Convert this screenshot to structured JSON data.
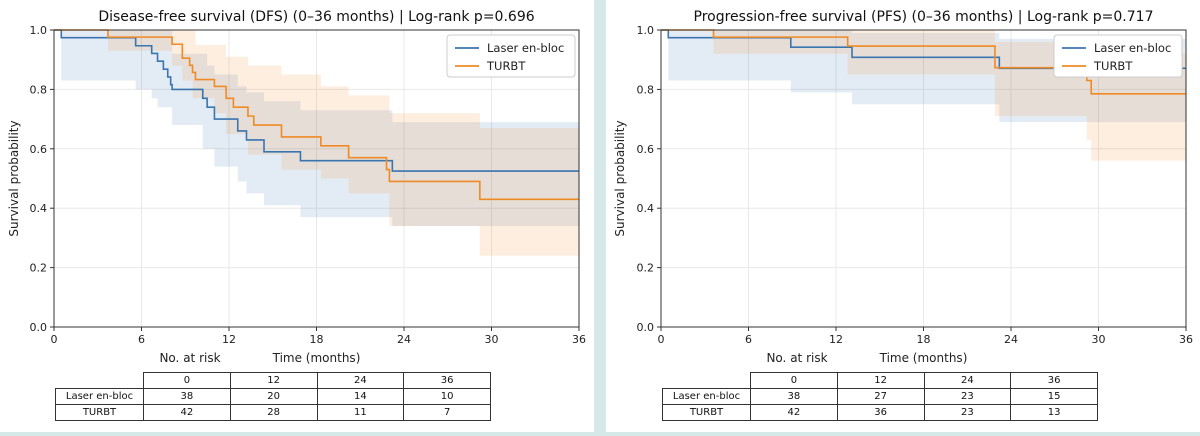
{
  "colors": {
    "laser": "#3a75b0",
    "turbt": "#f08a24"
  },
  "chart_data": [
    {
      "id": "dfs",
      "type": "line",
      "title": "Disease-free survival (DFS) (0–36 months)  |  Log-rank p=0.696",
      "xlabel": "Time (months)",
      "ylabel": "Survival probability",
      "xlim": [
        0,
        36
      ],
      "ylim": [
        0,
        1.0
      ],
      "xticks": [
        "0",
        "6",
        "12",
        "18",
        "24",
        "30",
        "36"
      ],
      "yticks": [
        "0.0",
        "0.2",
        "0.4",
        "0.6",
        "0.8",
        "1.0"
      ],
      "grid": true,
      "legend": "top-right",
      "series": [
        {
          "name": "Laser en-bloc",
          "color": "#3a75b0",
          "steps": [
            [
              0,
              1.0
            ],
            [
              0.5,
              0.974
            ],
            [
              5.6,
              0.947
            ],
            [
              6.7,
              0.921
            ],
            [
              7.1,
              0.895
            ],
            [
              7.5,
              0.868
            ],
            [
              7.8,
              0.842
            ],
            [
              8.0,
              0.816
            ],
            [
              8.1,
              0.8
            ],
            [
              10.2,
              0.77
            ],
            [
              10.5,
              0.74
            ],
            [
              11.0,
              0.7
            ],
            [
              12.6,
              0.66
            ],
            [
              13.2,
              0.63
            ],
            [
              14.4,
              0.59
            ],
            [
              16.9,
              0.56
            ],
            [
              22.7,
              0.56
            ],
            [
              23.2,
              0.525
            ],
            [
              36,
              0.525
            ]
          ],
          "ci_upper": [
            [
              0,
              1.0
            ],
            [
              0.5,
              1.0
            ],
            [
              5.6,
              1.0
            ],
            [
              6.7,
              1.0
            ],
            [
              7.1,
              1.0
            ],
            [
              8.1,
              0.92
            ],
            [
              10.5,
              0.88
            ],
            [
              11.0,
              0.85
            ],
            [
              12.6,
              0.81
            ],
            [
              13.2,
              0.79
            ],
            [
              14.4,
              0.76
            ],
            [
              16.9,
              0.73
            ],
            [
              23.2,
              0.69
            ],
            [
              36,
              0.69
            ]
          ],
          "ci_lower": [
            [
              0,
              1.0
            ],
            [
              0.5,
              0.83
            ],
            [
              5.6,
              0.8
            ],
            [
              6.7,
              0.77
            ],
            [
              7.1,
              0.74
            ],
            [
              8.1,
              0.68
            ],
            [
              10.2,
              0.6
            ],
            [
              11.0,
              0.54
            ],
            [
              12.6,
              0.49
            ],
            [
              13.2,
              0.45
            ],
            [
              14.4,
              0.41
            ],
            [
              16.9,
              0.37
            ],
            [
              23.2,
              0.34
            ],
            [
              36,
              0.34
            ]
          ]
        },
        {
          "name": "TURBT",
          "color": "#f08a24",
          "steps": [
            [
              0,
              1.0
            ],
            [
              3.7,
              0.976
            ],
            [
              8.1,
              0.952
            ],
            [
              8.8,
              0.905
            ],
            [
              9.3,
              0.881
            ],
            [
              9.5,
              0.857
            ],
            [
              9.7,
              0.833
            ],
            [
              11.0,
              0.81
            ],
            [
              11.8,
              0.77
            ],
            [
              12.3,
              0.74
            ],
            [
              13.3,
              0.71
            ],
            [
              13.7,
              0.68
            ],
            [
              15.6,
              0.64
            ],
            [
              18.3,
              0.61
            ],
            [
              20.2,
              0.57
            ],
            [
              22.8,
              0.53
            ],
            [
              23.0,
              0.49
            ],
            [
              29.2,
              0.43
            ],
            [
              36,
              0.43
            ]
          ],
          "ci_upper": [
            [
              0,
              1.0
            ],
            [
              3.7,
              1.0
            ],
            [
              8.1,
              1.0
            ],
            [
              9.3,
              1.0
            ],
            [
              9.7,
              0.95
            ],
            [
              11.8,
              0.91
            ],
            [
              13.3,
              0.88
            ],
            [
              15.6,
              0.85
            ],
            [
              18.3,
              0.81
            ],
            [
              20.2,
              0.78
            ],
            [
              23.0,
              0.72
            ],
            [
              29.2,
              0.67
            ],
            [
              36,
              0.67
            ]
          ],
          "ci_lower": [
            [
              0,
              1.0
            ],
            [
              3.7,
              0.93
            ],
            [
              8.1,
              0.88
            ],
            [
              8.8,
              0.83
            ],
            [
              9.5,
              0.77
            ],
            [
              11.0,
              0.72
            ],
            [
              11.8,
              0.65
            ],
            [
              13.3,
              0.58
            ],
            [
              15.6,
              0.53
            ],
            [
              18.3,
              0.5
            ],
            [
              20.2,
              0.45
            ],
            [
              23.0,
              0.34
            ],
            [
              29.2,
              0.24
            ],
            [
              36,
              0.24
            ]
          ]
        }
      ],
      "risk_table": {
        "label": "No. at risk",
        "times": [
          "0",
          "12",
          "24",
          "36"
        ],
        "rows": [
          {
            "name": "Laser en-bloc",
            "values": [
              "38",
              "20",
              "14",
              "10"
            ]
          },
          {
            "name": "TURBT",
            "values": [
              "42",
              "28",
              "11",
              "7"
            ]
          }
        ]
      }
    },
    {
      "id": "pfs",
      "type": "line",
      "title": "Progression-free survival (PFS) (0–36 months)  |  Log-rank p=0.717",
      "xlabel": "Time (months)",
      "ylabel": "Survival probability",
      "xlim": [
        0,
        36
      ],
      "ylim": [
        0,
        1.0
      ],
      "xticks": [
        "0",
        "6",
        "12",
        "18",
        "24",
        "30",
        "36"
      ],
      "yticks": [
        "0.0",
        "0.2",
        "0.4",
        "0.6",
        "0.8",
        "1.0"
      ],
      "grid": true,
      "legend": "top-right",
      "series": [
        {
          "name": "Laser en-bloc",
          "color": "#3a75b0",
          "steps": [
            [
              0,
              1.0
            ],
            [
              0.5,
              0.974
            ],
            [
              8.9,
              0.942
            ],
            [
              13.1,
              0.908
            ],
            [
              23.2,
              0.871
            ],
            [
              36,
              0.871
            ]
          ],
          "ci_upper": [
            [
              0,
              1.0
            ],
            [
              8.9,
              1.0
            ],
            [
              13.1,
              0.99
            ],
            [
              23.2,
              0.97
            ],
            [
              36,
              0.97
            ]
          ],
          "ci_lower": [
            [
              0,
              1.0
            ],
            [
              0.5,
              0.83
            ],
            [
              8.9,
              0.79
            ],
            [
              13.1,
              0.75
            ],
            [
              23.2,
              0.69
            ],
            [
              36,
              0.69
            ]
          ]
        },
        {
          "name": "TURBT",
          "color": "#f08a24",
          "steps": [
            [
              0,
              1.0
            ],
            [
              3.6,
              0.976
            ],
            [
              12.8,
              0.946
            ],
            [
              22.9,
              0.873
            ],
            [
              29.2,
              0.83
            ],
            [
              29.5,
              0.785
            ],
            [
              36,
              0.785
            ]
          ],
          "ci_upper": [
            [
              0,
              1.0
            ],
            [
              3.6,
              1.0
            ],
            [
              12.8,
              1.0
            ],
            [
              22.9,
              0.96
            ],
            [
              29.5,
              0.92
            ],
            [
              36,
              0.92
            ]
          ],
          "ci_lower": [
            [
              0,
              1.0
            ],
            [
              3.6,
              0.92
            ],
            [
              12.8,
              0.85
            ],
            [
              22.9,
              0.71
            ],
            [
              29.2,
              0.63
            ],
            [
              29.5,
              0.56
            ],
            [
              36,
              0.56
            ]
          ]
        }
      ],
      "risk_table": {
        "label": "No. at risk",
        "times": [
          "0",
          "12",
          "24",
          "36"
        ],
        "rows": [
          {
            "name": "Laser en-bloc",
            "values": [
              "38",
              "27",
              "23",
              "15"
            ]
          },
          {
            "name": "TURBT",
            "values": [
              "42",
              "36",
              "23",
              "13"
            ]
          }
        ]
      }
    }
  ]
}
